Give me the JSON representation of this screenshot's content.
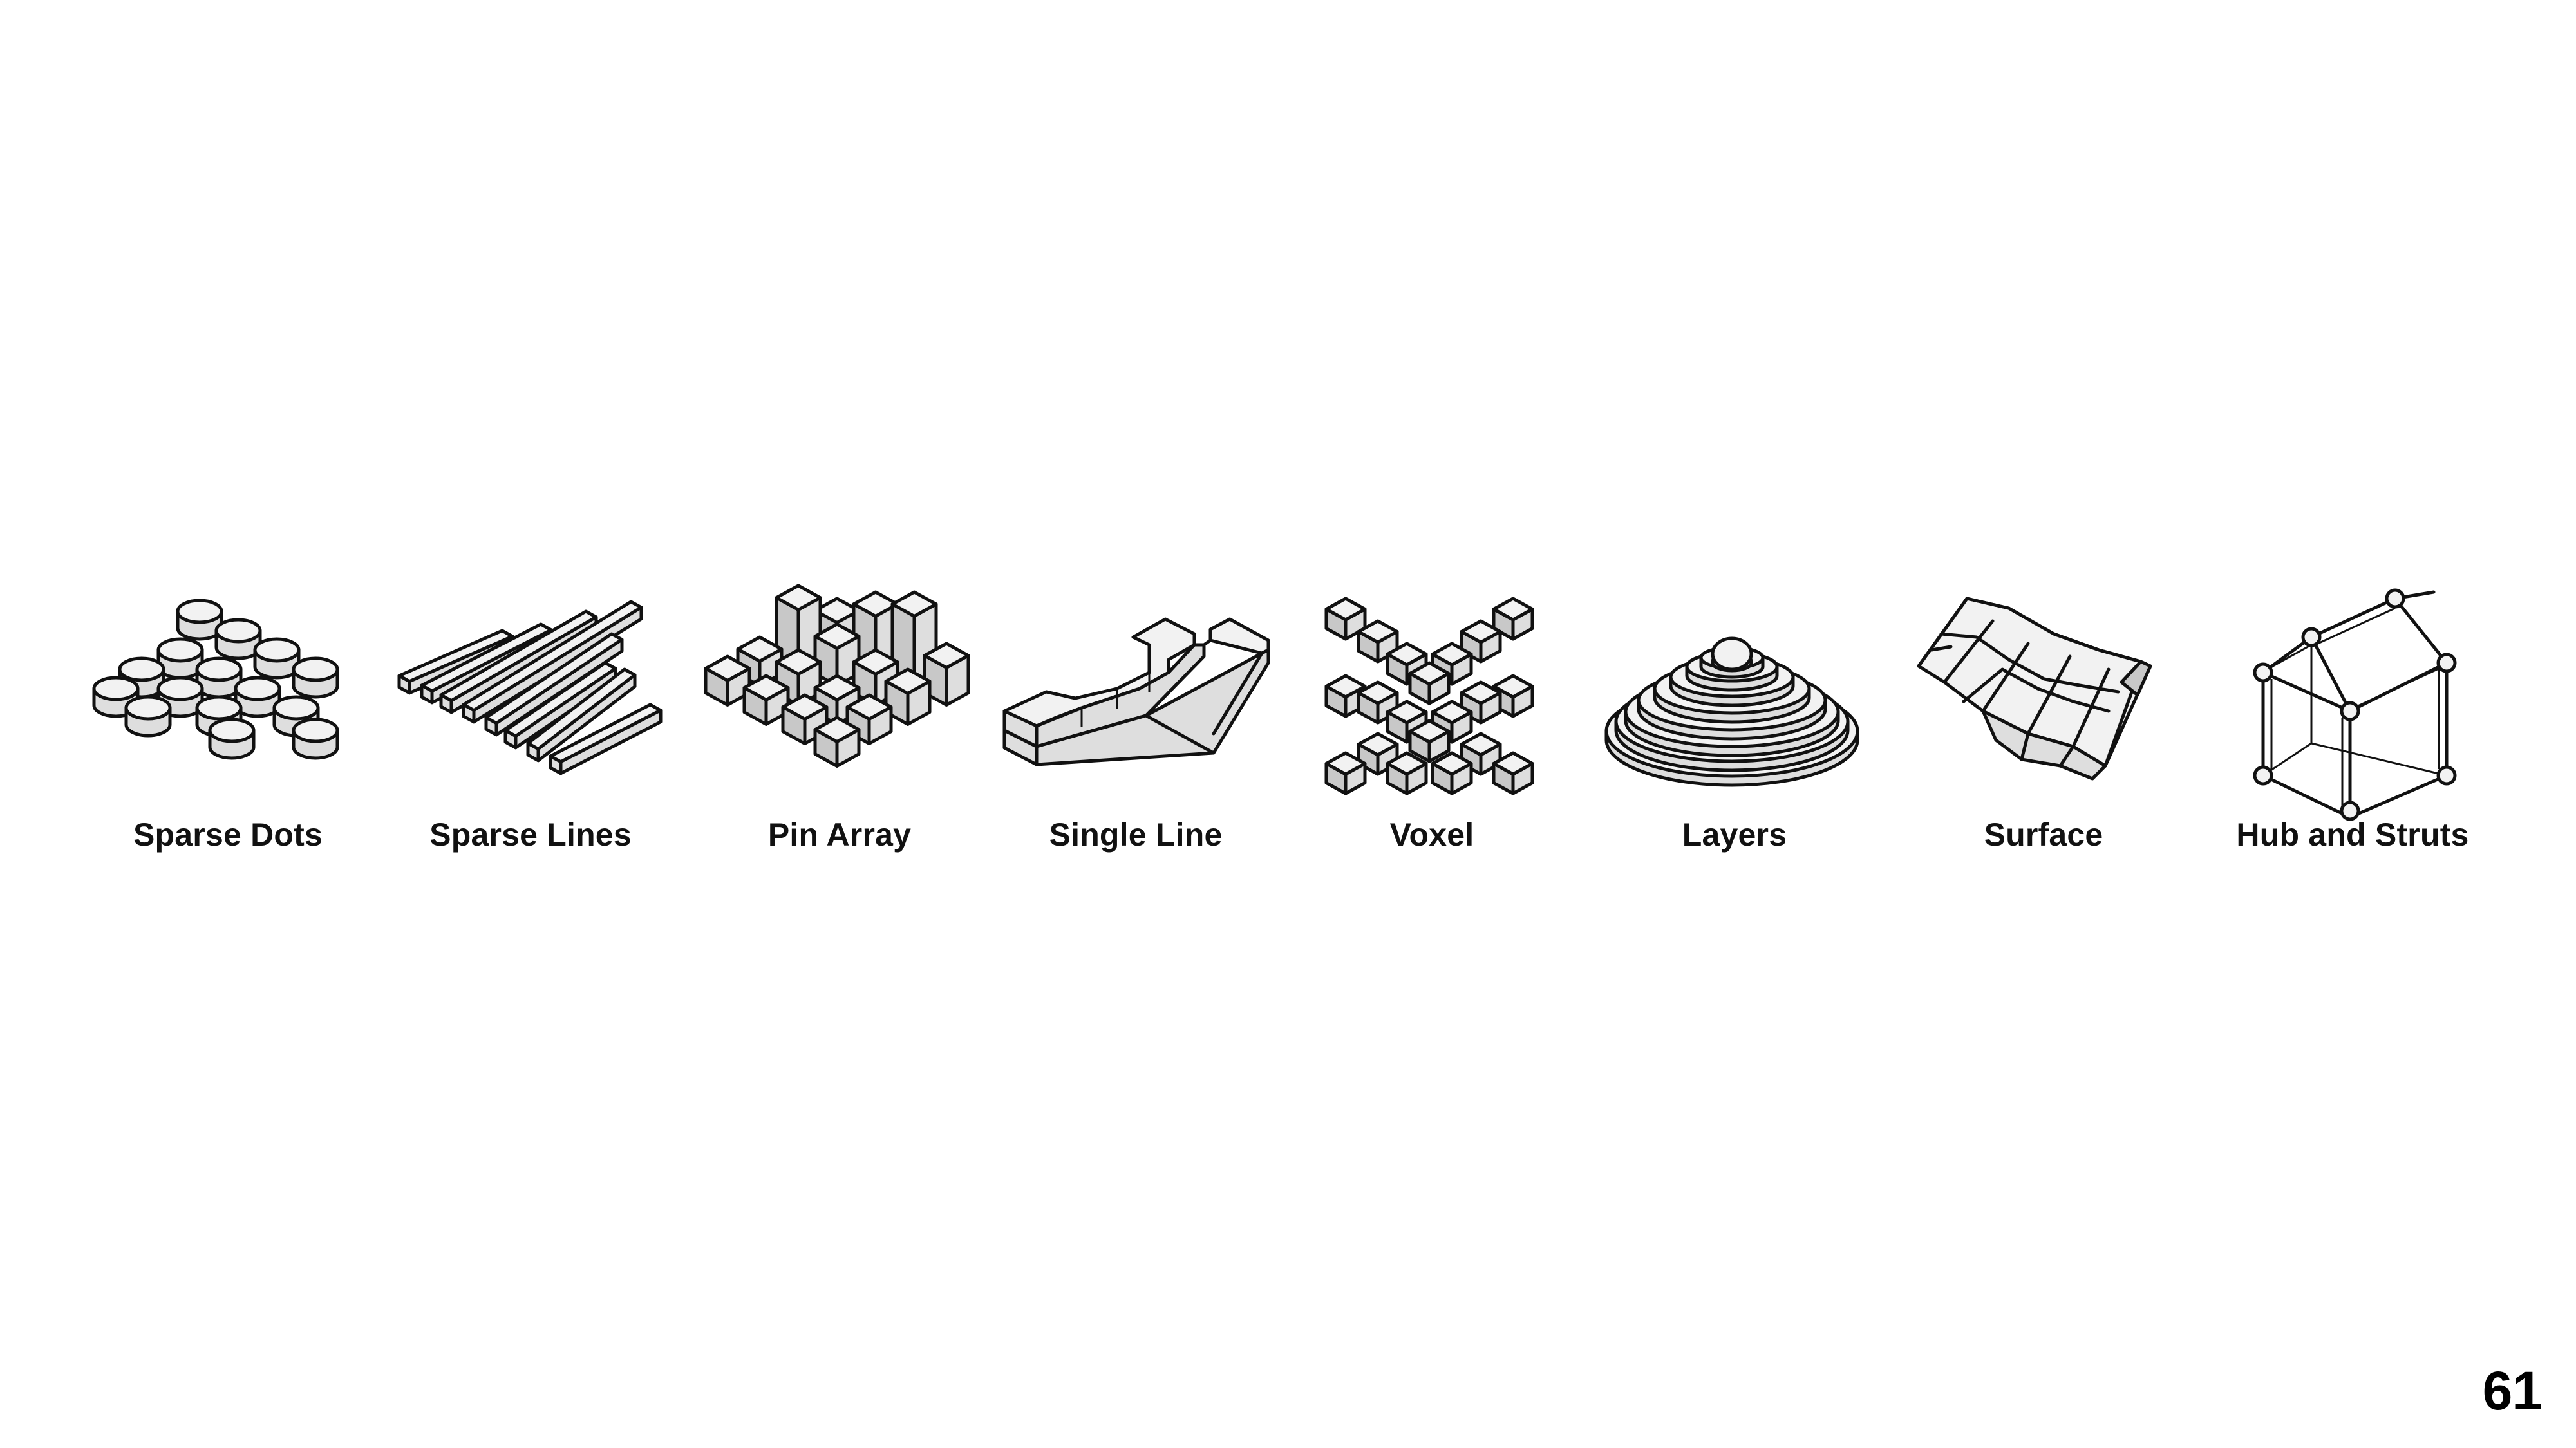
{
  "items": [
    {
      "label": "Sparse Dots",
      "icon": "sparse-dots-icon"
    },
    {
      "label": "Sparse Lines",
      "icon": "sparse-lines-icon"
    },
    {
      "label": "Pin Array",
      "icon": "pin-array-icon"
    },
    {
      "label": "Single Line",
      "icon": "single-line-icon"
    },
    {
      "label": "Voxel",
      "icon": "voxel-icon"
    },
    {
      "label": "Layers",
      "icon": "layers-icon"
    },
    {
      "label": "Surface",
      "icon": "surface-icon"
    },
    {
      "label": "Hub and Struts",
      "icon": "hub-and-struts-icon"
    }
  ],
  "page_number": "61"
}
